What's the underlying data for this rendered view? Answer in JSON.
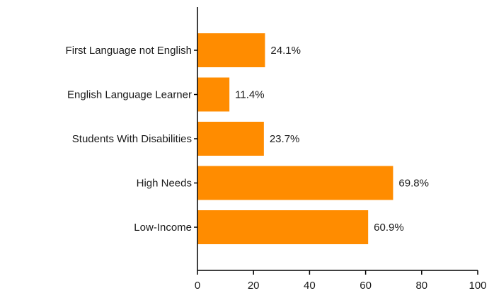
{
  "chart_data": {
    "type": "bar",
    "orientation": "horizontal",
    "categories": [
      "First Language not English",
      "English Language Learner",
      "Students With Disabilities",
      "High Needs",
      "Low-Income"
    ],
    "values": [
      24.1,
      11.4,
      23.7,
      69.8,
      60.9
    ],
    "value_labels": [
      "24.1%",
      "11.4%",
      "23.7%",
      "69.8%",
      "60.9%"
    ],
    "x_ticks": [
      0,
      20,
      40,
      60,
      80,
      100
    ],
    "xlim": [
      0,
      100
    ],
    "bar_color": "#FF8C00",
    "grid": false,
    "legend": "none"
  }
}
